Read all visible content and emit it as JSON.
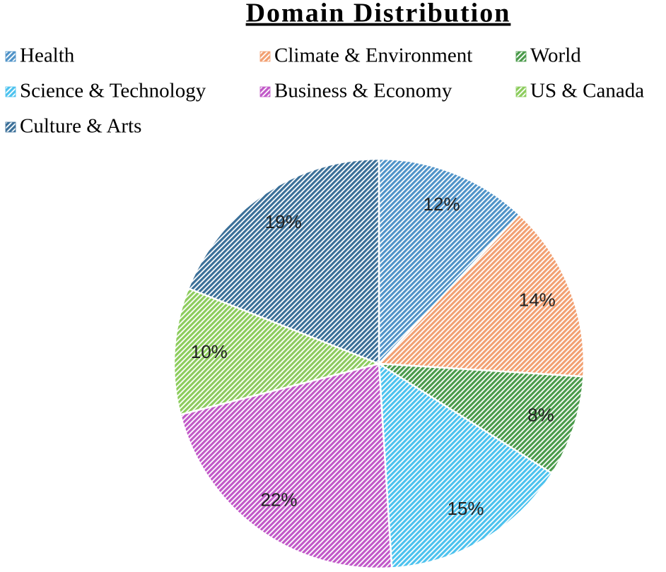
{
  "chart_data": {
    "type": "pie",
    "title": "Domain Distribution",
    "categories": [
      "Health",
      "Climate & Environment",
      "World",
      "Science & Technology",
      "Business & Economy",
      "US & Canada",
      "Culture & Arts"
    ],
    "values": [
      12,
      14,
      8,
      15,
      22,
      10,
      19
    ],
    "value_labels": [
      "12%",
      "14%",
      "8%",
      "15%",
      "22%",
      "10%",
      "19%"
    ],
    "colors": [
      "#4f93c8",
      "#f2a072",
      "#4a9a4a",
      "#4cc2ee",
      "#c158c8",
      "#8ccc5c",
      "#3a6f98"
    ]
  }
}
